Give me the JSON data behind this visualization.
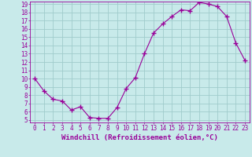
{
  "x": [
    0,
    1,
    2,
    3,
    4,
    5,
    6,
    7,
    8,
    9,
    10,
    11,
    12,
    13,
    14,
    15,
    16,
    17,
    18,
    19,
    20,
    21,
    22,
    23
  ],
  "y": [
    10,
    8.5,
    7.5,
    7.3,
    6.2,
    6.6,
    5.3,
    5.2,
    5.2,
    6.5,
    8.8,
    10.1,
    13.0,
    15.5,
    16.6,
    17.5,
    18.3,
    18.2,
    19.2,
    19.0,
    18.7,
    17.5,
    14.3,
    12.2
  ],
  "line_color": "#990099",
  "marker": "+",
  "marker_size": 4,
  "marker_lw": 1.0,
  "bg_color": "#c8eaea",
  "grid_color": "#a0cccc",
  "xlabel": "Windchill (Refroidissement éolien,°C)",
  "ylim_min": 5,
  "ylim_max": 19,
  "xlim_min": 0,
  "xlim_max": 23,
  "yticks": [
    5,
    6,
    7,
    8,
    9,
    10,
    11,
    12,
    13,
    14,
    15,
    16,
    17,
    18,
    19
  ],
  "xticks": [
    0,
    1,
    2,
    3,
    4,
    5,
    6,
    7,
    8,
    9,
    10,
    11,
    12,
    13,
    14,
    15,
    16,
    17,
    18,
    19,
    20,
    21,
    22,
    23
  ],
  "tick_color": "#990099",
  "label_color": "#990099",
  "axis_color": "#990099",
  "tick_fontsize": 5.5,
  "xlabel_fontsize": 6.5
}
